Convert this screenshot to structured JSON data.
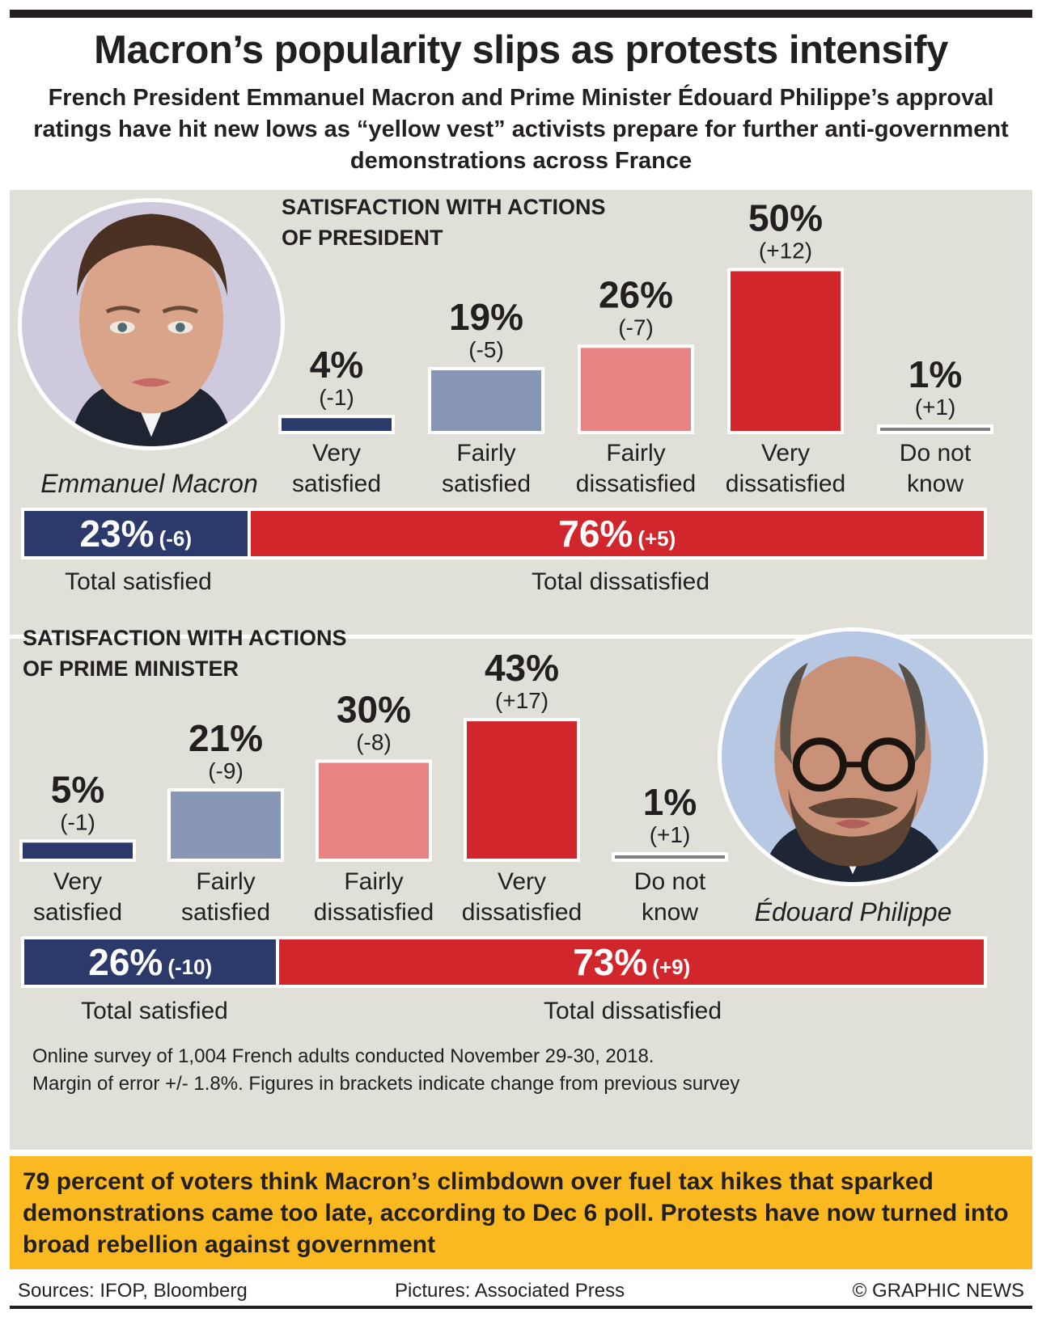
{
  "header": {
    "title": "Macron’s popularity slips as protests intensify",
    "subtitle": "French President Emmanuel Macron and Prime Minister Édouard Philippe’s approval ratings have hit new lows as “yellow vest” activists prepare for further anti-government demonstrations across France"
  },
  "colors": {
    "very_satisfied": "#2b3a6b",
    "fairly_satisfied": "#8897b5",
    "fairly_dissatisfied": "#e88383",
    "very_dissatisfied": "#d2262d",
    "do_not_know": "#7f8186",
    "panel_bg": "#e0dfd8",
    "callout_bg": "#fbb921"
  },
  "chart_data": [
    {
      "type": "bar",
      "title": "Satisfaction with Actions of President",
      "title_lines": [
        "Satisfaction with Actions",
        "of President"
      ],
      "person": "Emmanuel Macron",
      "categories": [
        "Very satisfied",
        "Fairly satisfied",
        "Fairly dissatisfied",
        "Very dissatisfied",
        "Do not know"
      ],
      "category_lines": [
        [
          "Very",
          "satisfied"
        ],
        [
          "Fairly",
          "satisfied"
        ],
        [
          "Fairly",
          "dissatisfied"
        ],
        [
          "Very",
          "dissatisfied"
        ],
        [
          "Do not",
          "know"
        ]
      ],
      "values": [
        4,
        19,
        26,
        50,
        1
      ],
      "value_labels": [
        "4%",
        "19%",
        "26%",
        "50%",
        "1%"
      ],
      "changes": [
        "(-1)",
        "(-5)",
        "(-7)",
        "(+12)",
        "(+1)"
      ],
      "unit": "%",
      "ylim": [
        0,
        50
      ],
      "totals": {
        "satisfied": {
          "value": 23,
          "label": "23%",
          "change": "(-6)",
          "caption": "Total satisfied"
        },
        "dissatisfied": {
          "value": 76,
          "label": "76%",
          "change": "(+5)",
          "caption": "Total dissatisfied"
        }
      }
    },
    {
      "type": "bar",
      "title": "Satisfaction with Actions of Prime Minister",
      "title_lines": [
        "Satisfaction with Actions",
        "of Prime Minister"
      ],
      "person": "Édouard Philippe",
      "categories": [
        "Very satisfied",
        "Fairly satisfied",
        "Fairly dissatisfied",
        "Very dissatisfied",
        "Do not know"
      ],
      "category_lines": [
        [
          "Very",
          "satisfied"
        ],
        [
          "Fairly",
          "satisfied"
        ],
        [
          "Fairly",
          "dissatisfied"
        ],
        [
          "Very",
          "dissatisfied"
        ],
        [
          "Do not",
          "know"
        ]
      ],
      "values": [
        5,
        21,
        30,
        43,
        1
      ],
      "value_labels": [
        "5%",
        "21%",
        "30%",
        "43%",
        "1%"
      ],
      "changes": [
        "(-1)",
        "(-9)",
        "(-8)",
        "(+17)",
        "(+1)"
      ],
      "unit": "%",
      "ylim": [
        0,
        50
      ],
      "totals": {
        "satisfied": {
          "value": 26,
          "label": "26%",
          "change": "(-10)",
          "caption": "Total satisfied"
        },
        "dissatisfied": {
          "value": 73,
          "label": "73%",
          "change": "(+9)",
          "caption": "Total dissatisfied"
        }
      }
    }
  ],
  "notes": {
    "line1": "Online survey of 1,004 French adults conducted November 29-30, 2018.",
    "line2": "Margin of error +/- 1.8%. Figures in brackets indicate change from previous survey"
  },
  "callout": "79 percent of voters think Macron’s climbdown over fuel tax hikes that sparked demonstrations came too late, according to Dec 6 poll. Protests have now turned into broad rebellion against government",
  "footer": {
    "sources": "Sources: IFOP, Bloomberg",
    "pictures": "Pictures: Associated Press",
    "copyright": "© GRAPHIC NEWS"
  }
}
